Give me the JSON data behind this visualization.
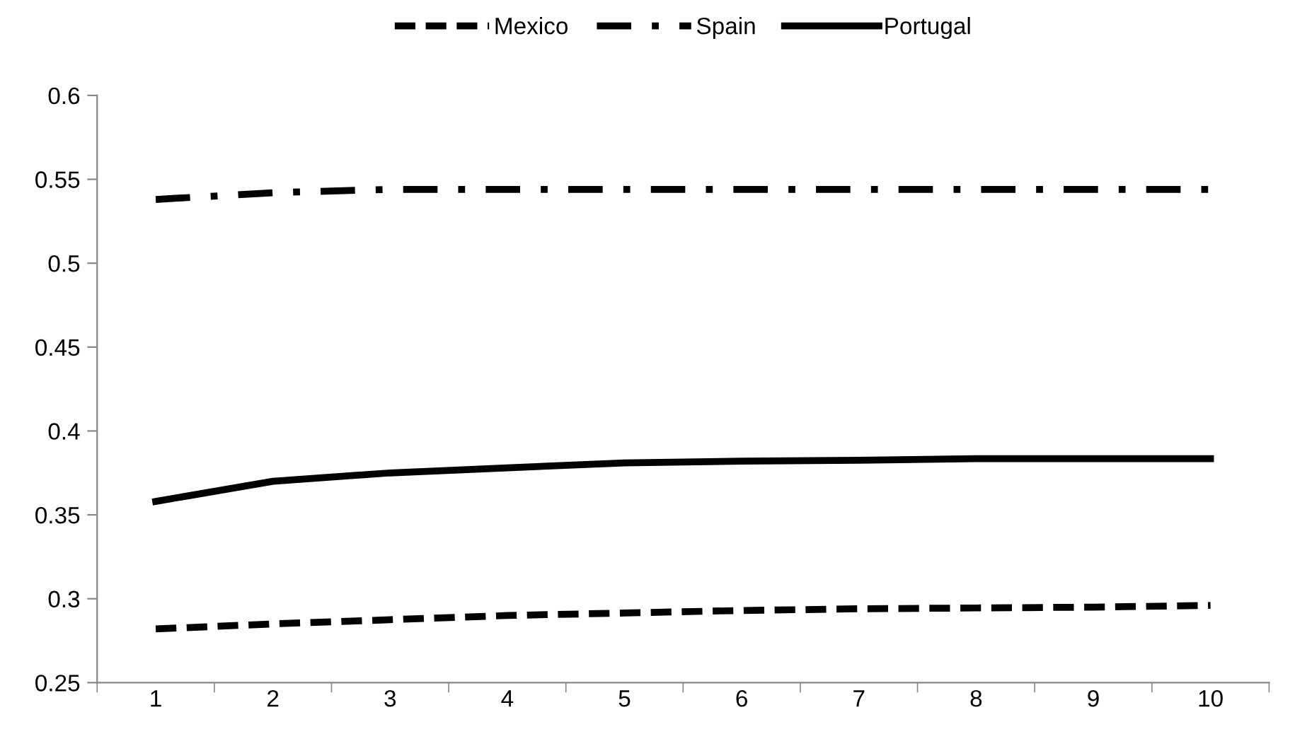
{
  "chart_data": {
    "type": "line",
    "categories": [
      "1",
      "2",
      "3",
      "4",
      "5",
      "6",
      "7",
      "8",
      "9",
      "10"
    ],
    "series": [
      {
        "name": "Mexico",
        "color": "#000000",
        "line_style": "dashed",
        "values": [
          0.282,
          0.285,
          0.2875,
          0.29,
          0.2915,
          0.293,
          0.294,
          0.2945,
          0.295,
          0.296
        ]
      },
      {
        "name": "Spain",
        "color": "#000000",
        "line_style": "dashdot",
        "values": [
          0.538,
          0.542,
          0.544,
          0.544,
          0.544,
          0.544,
          0.544,
          0.544,
          0.544,
          0.544
        ]
      },
      {
        "name": "Portugal",
        "color": "#000000",
        "line_style": "solid",
        "values": [
          0.358,
          0.37,
          0.375,
          0.378,
          0.381,
          0.382,
          0.3825,
          0.3835,
          0.3835,
          0.3835
        ]
      }
    ],
    "ylim": [
      0.25,
      0.6
    ],
    "yticks": [
      {
        "value": 0.25,
        "label": "0.25"
      },
      {
        "value": 0.3,
        "label": "0.3"
      },
      {
        "value": 0.35,
        "label": "0.35"
      },
      {
        "value": 0.4,
        "label": "0.4"
      },
      {
        "value": 0.45,
        "label": "0.45"
      },
      {
        "value": 0.5,
        "label": "0.5"
      },
      {
        "value": 0.55,
        "label": "0.55"
      },
      {
        "value": 0.6,
        "label": "0.6"
      }
    ],
    "grid": false,
    "legend": "top",
    "marker": "none"
  }
}
